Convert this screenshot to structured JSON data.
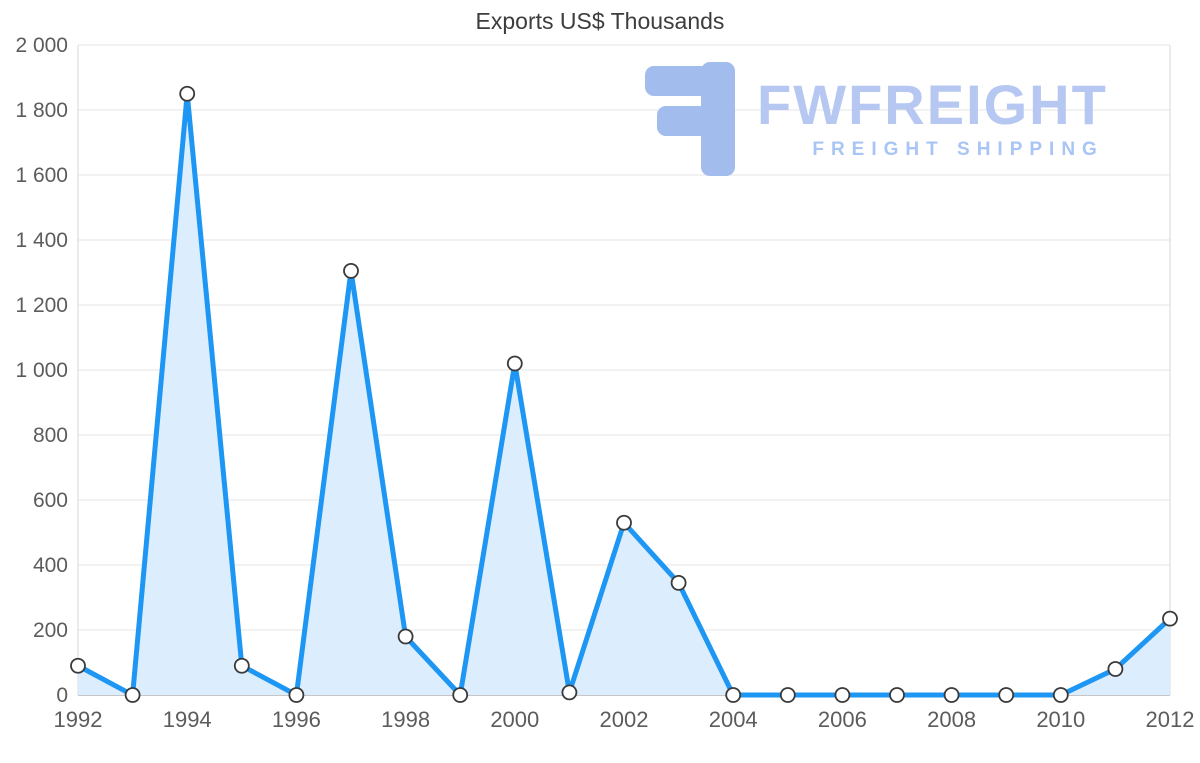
{
  "title": "Exports US$ Thousands",
  "watermark": {
    "brand": "FWFREIGHT",
    "tagline": "FREIGHT SHIPPING",
    "glyph_color": "#a3bcee",
    "brand_color": "#b6c7f2",
    "tagline_color": "#a8c5f5"
  },
  "chart_data": {
    "type": "area",
    "title": "Exports US$ Thousands",
    "xlabel": "",
    "ylabel": "",
    "x": [
      1992,
      1993,
      1994,
      1995,
      1996,
      1997,
      1998,
      1999,
      2000,
      2001,
      2002,
      2003,
      2004,
      2005,
      2006,
      2007,
      2008,
      2009,
      2010,
      2011,
      2012
    ],
    "values": [
      90,
      0,
      1850,
      90,
      0,
      1305,
      180,
      0,
      1020,
      8,
      530,
      345,
      0,
      0,
      0,
      0,
      0,
      0,
      0,
      80,
      235
    ],
    "ylim": [
      0,
      2000
    ],
    "yticks": [
      0,
      200,
      400,
      600,
      800,
      1000,
      1200,
      1400,
      1600,
      1800,
      2000
    ],
    "ytick_labels": [
      "0",
      "200",
      "400",
      "600",
      "800",
      "1 000",
      "1 200",
      "1 400",
      "1 600",
      "1 800",
      "2 000"
    ],
    "xticks": [
      1992,
      1994,
      1996,
      1998,
      2000,
      2002,
      2004,
      2006,
      2008,
      2010,
      2012
    ],
    "xtick_labels": [
      "1992",
      "1994",
      "1996",
      "1998",
      "2000",
      "2002",
      "2004",
      "2006",
      "2008",
      "2010",
      "2012"
    ],
    "grid": true,
    "legend": "none",
    "line_color": "#1d97f3",
    "fill_color": "#dcedfd",
    "marker_fill": "#ffffff",
    "marker_stroke": "#3a3a3a",
    "grid_color": "#e4e4e4",
    "edge_grid_color": "#d7d7d7",
    "zero_line_color": "#b3b3b3",
    "tick_label_color": "#5c5c5c"
  }
}
